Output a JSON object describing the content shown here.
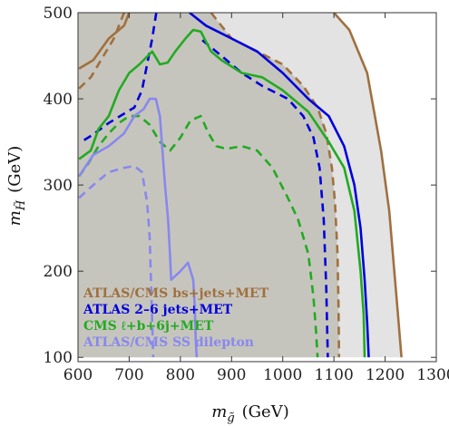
{
  "chart_data": {
    "type": "line",
    "xlabel": "m_g̃ (GeV)",
    "xlabel_main": "m",
    "xlabel_sub": "g̃",
    "xlabel_unit": "(GeV)",
    "ylabel_main": "m",
    "ylabel_sub": "H̃",
    "ylabel_unit": "(GeV)",
    "xlim": [
      600,
      1300
    ],
    "ylim": [
      95,
      500
    ],
    "xticks": [
      600,
      700,
      800,
      900,
      1000,
      1100,
      1200,
      1300
    ],
    "yticks": [
      100,
      200,
      300,
      400,
      500
    ],
    "grid": false,
    "legend_position": "bottom-left",
    "colors": {
      "light_region": "#e3e3e3",
      "dark_region": "#c6c5bd",
      "brown": "#a0703f",
      "blue": "#0000dd",
      "green": "#22aa22",
      "lavender": "#8888ee"
    },
    "legend": [
      {
        "label": "ATLAS/CMS bs+jets+MET",
        "color": "#a0703f"
      },
      {
        "label": "ATLAS 2–6 jets+MET",
        "color": "#0000dd"
      },
      {
        "label": "CMS ℓ+b+6j+MET",
        "color": "#22aa22"
      },
      {
        "label": "ATLAS/CMS SS dilepton",
        "color": "#8888ee"
      }
    ],
    "regions": [
      {
        "name": "light",
        "color": "#e3e3e3",
        "points": [
          [
            600,
            500
          ],
          [
            1100,
            500
          ],
          [
            1130,
            480
          ],
          [
            1165,
            430
          ],
          [
            1192,
            340
          ],
          [
            1208,
            270
          ],
          [
            1218,
            200
          ],
          [
            1225,
            150
          ],
          [
            1232,
            100
          ],
          [
            600,
            100
          ]
        ]
      },
      {
        "name": "dark",
        "color": "#c6c5bd",
        "points": [
          [
            600,
            500
          ],
          [
            860,
            500
          ],
          [
            900,
            470
          ],
          [
            950,
            455
          ],
          [
            1000,
            440
          ],
          [
            1040,
            415
          ],
          [
            1068,
            390
          ],
          [
            1085,
            360
          ],
          [
            1096,
            320
          ],
          [
            1102,
            280
          ],
          [
            1107,
            220
          ],
          [
            1109,
            160
          ],
          [
            1110,
            100
          ],
          [
            600,
            100
          ]
        ]
      }
    ],
    "series": [
      {
        "color": "#a0703f",
        "style": "solid",
        "points": [
          [
            1100,
            500
          ],
          [
            1130,
            480
          ],
          [
            1165,
            430
          ],
          [
            1192,
            340
          ],
          [
            1208,
            270
          ],
          [
            1218,
            200
          ],
          [
            1225,
            150
          ],
          [
            1232,
            100
          ]
        ]
      },
      {
        "color": "#a0703f",
        "style": "solid",
        "points": [
          [
            602,
            435
          ],
          [
            630,
            445
          ],
          [
            660,
            470
          ],
          [
            690,
            485
          ],
          [
            700,
            500
          ]
        ]
      },
      {
        "color": "#a0703f",
        "style": "dashed",
        "points": [
          [
            860,
            500
          ],
          [
            900,
            470
          ],
          [
            950,
            455
          ],
          [
            1000,
            440
          ],
          [
            1040,
            415
          ],
          [
            1068,
            390
          ],
          [
            1085,
            360
          ],
          [
            1096,
            320
          ],
          [
            1102,
            280
          ],
          [
            1107,
            220
          ],
          [
            1109,
            160
          ],
          [
            1110,
            100
          ]
        ]
      },
      {
        "color": "#a0703f",
        "style": "dashed",
        "points": [
          [
            602,
            412
          ],
          [
            625,
            425
          ],
          [
            650,
            450
          ],
          [
            670,
            470
          ],
          [
            690,
            500
          ]
        ]
      },
      {
        "color": "#0000dd",
        "style": "solid",
        "points": [
          [
            818,
            500
          ],
          [
            850,
            485
          ],
          [
            900,
            470
          ],
          [
            950,
            455
          ],
          [
            1000,
            430
          ],
          [
            1050,
            400
          ],
          [
            1090,
            380
          ],
          [
            1120,
            345
          ],
          [
            1140,
            300
          ],
          [
            1152,
            250
          ],
          [
            1160,
            190
          ],
          [
            1165,
            140
          ],
          [
            1168,
            100
          ]
        ]
      },
      {
        "color": "#0000dd",
        "style": "dashed",
        "points": [
          [
            753,
            500
          ],
          [
            745,
            470
          ],
          [
            735,
            440
          ],
          [
            725,
            410
          ],
          [
            710,
            390
          ],
          [
            660,
            372
          ],
          [
            628,
            358
          ],
          [
            606,
            350
          ]
        ]
      },
      {
        "color": "#0000dd",
        "style": "dashed",
        "points": [
          [
            843,
            468
          ],
          [
            880,
            450
          ],
          [
            920,
            430
          ],
          [
            960,
            415
          ],
          [
            1010,
            400
          ],
          [
            1040,
            380
          ],
          [
            1060,
            355
          ],
          [
            1072,
            320
          ],
          [
            1080,
            260
          ],
          [
            1085,
            180
          ],
          [
            1088,
            100
          ]
        ]
      },
      {
        "color": "#22aa22",
        "style": "solid",
        "points": [
          [
            602,
            330
          ],
          [
            625,
            340
          ],
          [
            640,
            365
          ],
          [
            660,
            380
          ],
          [
            680,
            410
          ],
          [
            700,
            430
          ],
          [
            720,
            440
          ],
          [
            745,
            455
          ],
          [
            760,
            440
          ],
          [
            775,
            442
          ],
          [
            790,
            455
          ],
          [
            810,
            470
          ],
          [
            825,
            480
          ],
          [
            840,
            478
          ],
          [
            860,
            455
          ],
          [
            880,
            445
          ],
          [
            920,
            430
          ],
          [
            960,
            425
          ],
          [
            1000,
            410
          ],
          [
            1050,
            385
          ],
          [
            1090,
            350
          ],
          [
            1120,
            320
          ],
          [
            1140,
            270
          ],
          [
            1152,
            200
          ],
          [
            1158,
            150
          ],
          [
            1160,
            100
          ]
        ]
      },
      {
        "color": "#22aa22",
        "style": "dashed",
        "points": [
          [
            602,
            310
          ],
          [
            620,
            325
          ],
          [
            640,
            345
          ],
          [
            660,
            360
          ],
          [
            680,
            372
          ],
          [
            700,
            380
          ],
          [
            720,
            380
          ],
          [
            740,
            370
          ],
          [
            760,
            350
          ],
          [
            780,
            340
          ],
          [
            800,
            355
          ],
          [
            820,
            375
          ],
          [
            840,
            380
          ],
          [
            855,
            360
          ],
          [
            870,
            345
          ],
          [
            890,
            342
          ],
          [
            920,
            345
          ],
          [
            950,
            340
          ],
          [
            980,
            320
          ],
          [
            1010,
            285
          ],
          [
            1030,
            260
          ],
          [
            1050,
            220
          ],
          [
            1060,
            170
          ],
          [
            1065,
            130
          ],
          [
            1068,
            100
          ]
        ]
      },
      {
        "color": "#8888ee",
        "style": "solid",
        "points": [
          [
            602,
            310
          ],
          [
            630,
            335
          ],
          [
            660,
            345
          ],
          [
            690,
            360
          ],
          [
            710,
            380
          ],
          [
            728,
            388
          ],
          [
            740,
            400
          ],
          [
            752,
            400
          ],
          [
            760,
            380
          ],
          [
            765,
            340
          ],
          [
            770,
            300
          ],
          [
            776,
            260
          ],
          [
            780,
            215
          ],
          [
            782,
            190
          ],
          [
            800,
            200
          ],
          [
            815,
            210
          ],
          [
            825,
            190
          ],
          [
            828,
            160
          ],
          [
            830,
            120
          ],
          [
            832,
            100
          ]
        ]
      },
      {
        "color": "#8888ee",
        "style": "dashed",
        "points": [
          [
            602,
            285
          ],
          [
            630,
            300
          ],
          [
            660,
            315
          ],
          [
            690,
            320
          ],
          [
            710,
            322
          ],
          [
            725,
            315
          ],
          [
            735,
            280
          ],
          [
            740,
            240
          ],
          [
            743,
            180
          ],
          [
            745,
            140
          ],
          [
            747,
            100
          ]
        ]
      }
    ]
  }
}
